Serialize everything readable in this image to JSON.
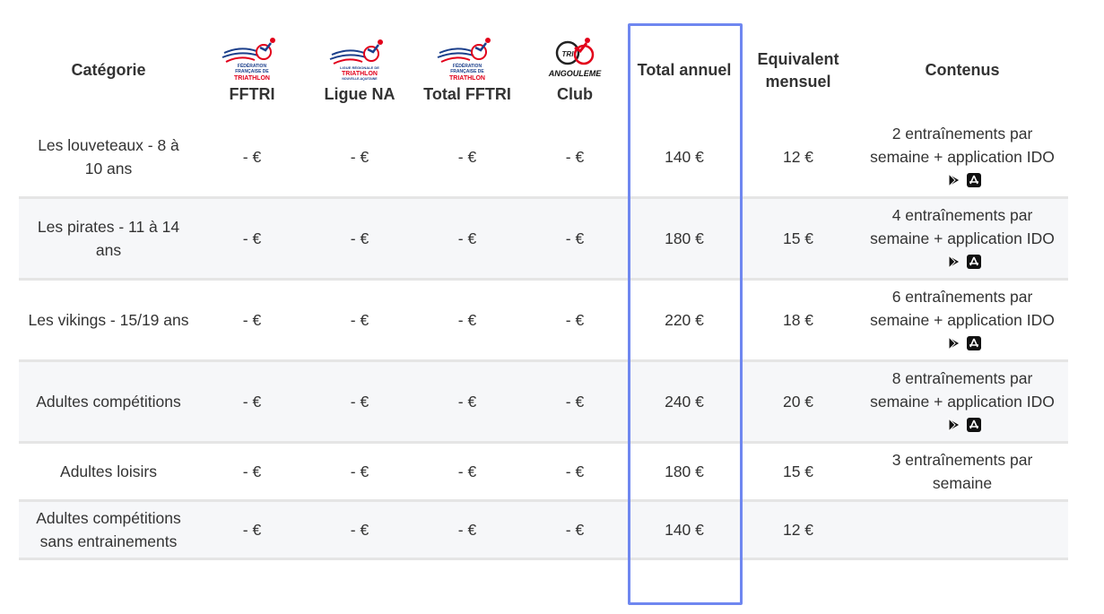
{
  "table": {
    "headers": {
      "categorie": "Catégorie",
      "fftri": "FFTRI",
      "ligue": "Ligue NA",
      "total_fftri": "Total FFTRI",
      "club": "Club",
      "total_annuel": "Total annuel",
      "equivalent": "Equivalent mensuel",
      "contenus": "Contenus"
    },
    "logos": {
      "fftri": {
        "line1": "FÉDÉRATION",
        "line2": "FRANÇAISE DE",
        "line3": "TRIATHLON"
      },
      "ligue": {
        "line1": "LIGUE RÉGIONALE DE",
        "line2": "TRIATHLON",
        "line3": "NOUVELLE-AQUITAINE"
      },
      "total_fftri": {
        "line1": "FÉDÉRATION",
        "line2": "FRANÇAISE DE",
        "line3": "TRIATHLON"
      },
      "club": {
        "badge": "TRI",
        "text": "ANGOULEME"
      }
    },
    "rows": [
      {
        "categorie": "Les louveteaux - 8 à 10 ans",
        "fftri": "- €",
        "ligue": "- €",
        "total_fftri": "- €",
        "club": "- €",
        "total_annuel": "140 €",
        "equivalent": "12 €",
        "contenus_main": "2 entraînements par semaine + application",
        "contenus_app": "IDO"
      },
      {
        "categorie": "Les pirates - 11 à 14 ans",
        "fftri": "- €",
        "ligue": "- €",
        "total_fftri": "- €",
        "club": "- €",
        "total_annuel": "180 €",
        "equivalent": "15 €",
        "contenus_main": "4 entraînements par semaine + application",
        "contenus_app": "IDO"
      },
      {
        "categorie": "Les vikings - 15/19 ans",
        "fftri": "- €",
        "ligue": "- €",
        "total_fftri": "- €",
        "club": "- €",
        "total_annuel": "220 €",
        "equivalent": "18 €",
        "contenus_main": "6 entraînements par semaine + application",
        "contenus_app": "IDO"
      },
      {
        "categorie": "Adultes compétitions",
        "fftri": "- €",
        "ligue": "- €",
        "total_fftri": "- €",
        "club": "- €",
        "total_annuel": "240 €",
        "equivalent": "20 €",
        "contenus_main": "8 entraînements par semaine + application",
        "contenus_app": "IDO"
      },
      {
        "categorie": "Adultes loisirs",
        "fftri": "- €",
        "ligue": "- €",
        "total_fftri": "- €",
        "club": "- €",
        "total_annuel": "180 €",
        "equivalent": "15 €",
        "contenus_main": "3 entraînements par semaine",
        "contenus_app": ""
      },
      {
        "categorie": "Adultes compétitions sans entrainements",
        "fftri": "- €",
        "ligue": "- €",
        "total_fftri": "- €",
        "club": "- €",
        "total_annuel": "140 €",
        "equivalent": "12 €",
        "contenus_main": "",
        "contenus_app": ""
      }
    ],
    "icons": [
      "google-play-icon",
      "app-store-icon"
    ],
    "colors": {
      "highlight": "#6f87f0",
      "row_alt": "#f6f7f9",
      "logo_red": "#e2001a",
      "logo_blue": "#1b3f8b"
    }
  }
}
